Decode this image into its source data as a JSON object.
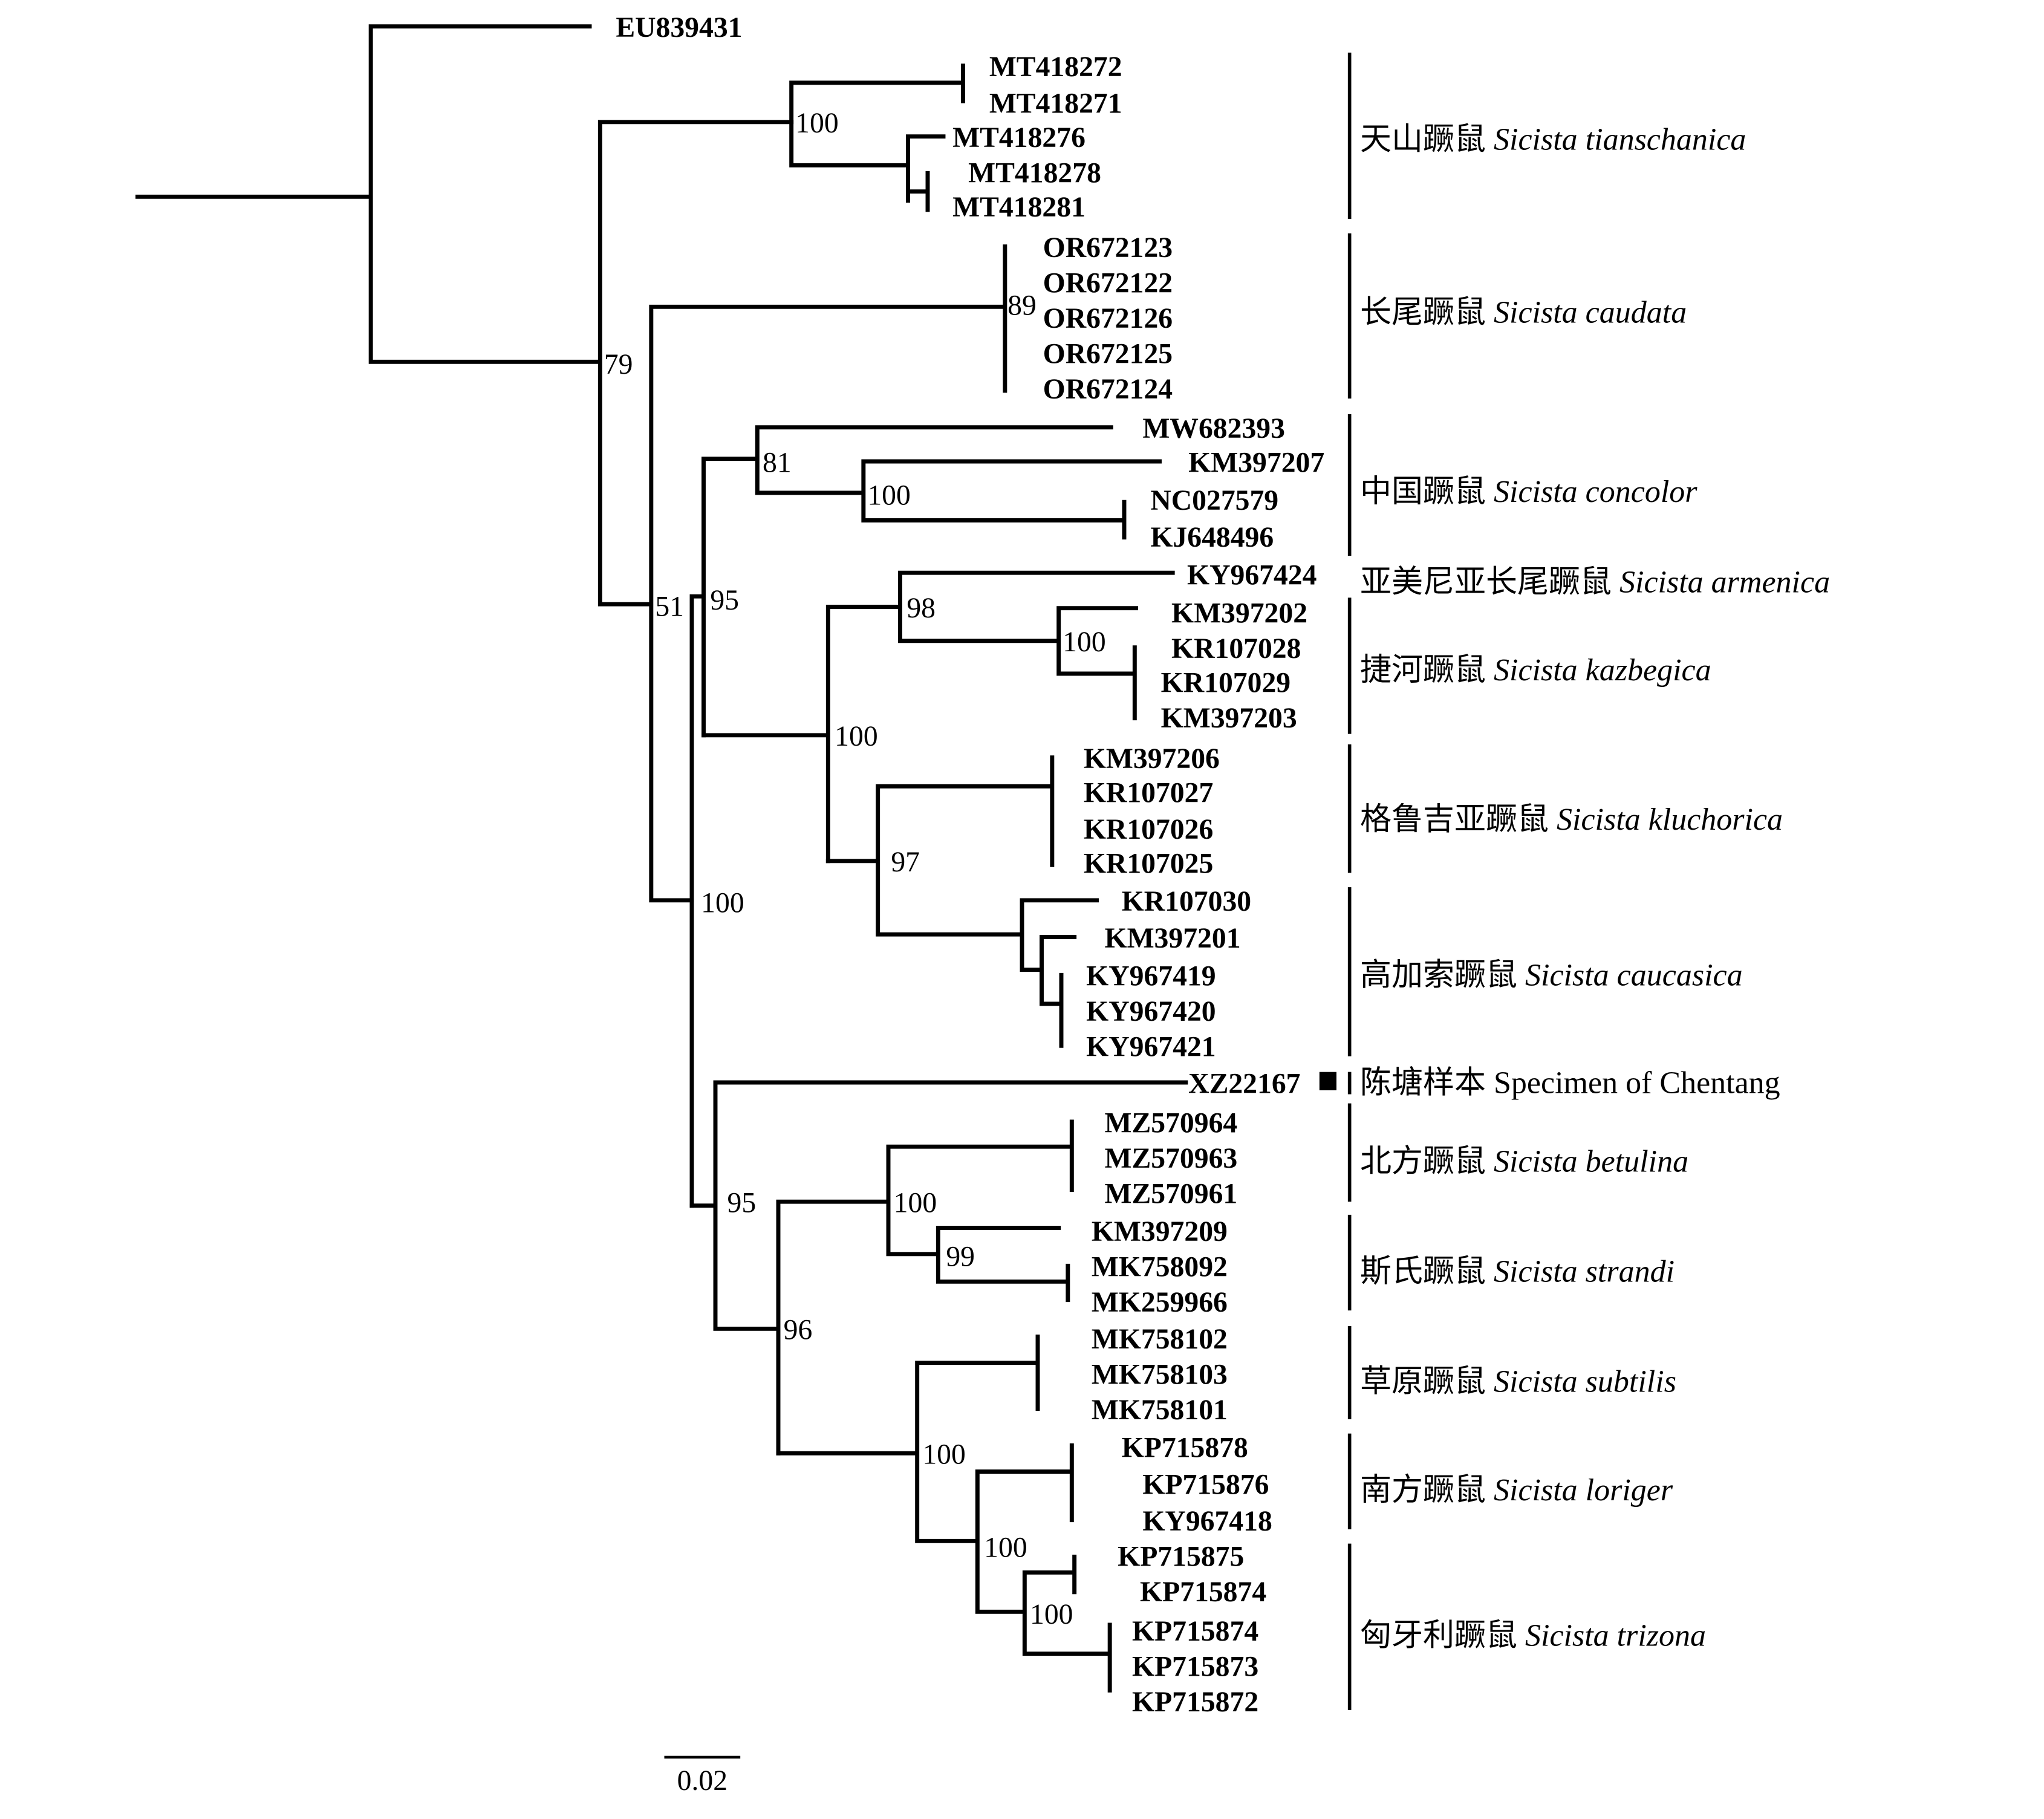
{
  "tips": [
    "EU839431",
    "MT418272",
    "MT418271",
    "MT418276",
    "MT418278",
    "MT418281",
    "OR672123",
    "OR672122",
    "OR672126",
    "OR672125",
    "OR672124",
    "MW682393",
    "KM397207",
    "NC027579",
    "KJ648496",
    "KY967424",
    "KM397202",
    "KR107028",
    "KR107029",
    "KM397203",
    "KM397206",
    "KR107027",
    "KR107026",
    "KR107025",
    "KR107030",
    "KM397201",
    "KY967419",
    "KY967420",
    "KY967421",
    "XZ22167",
    "MZ570964",
    "MZ570963",
    "MZ570961",
    "KM397209",
    "MK758092",
    "MK259966",
    "MK758102",
    "MK758103",
    "MK758101",
    "KP715878",
    "KP715876",
    "KY967418",
    "KP715875",
    "KP715874",
    "KP715874",
    "KP715873",
    "KP715872"
  ],
  "supports": [
    "100",
    "89",
    "79",
    "81",
    "100",
    "51",
    "95",
    "98",
    "100",
    "100",
    "97",
    "100",
    "95",
    "100",
    "99",
    "96",
    "100",
    "100",
    "100"
  ],
  "clades": [
    {
      "cn": "天山蹶鼠",
      "latin": "Sicista tianschanica"
    },
    {
      "cn": "长尾蹶鼠",
      "latin": "Sicista caudata"
    },
    {
      "cn": "中国蹶鼠",
      "latin": "Sicista concolor"
    },
    {
      "cn": "亚美尼亚长尾蹶鼠",
      "latin": "Sicista armenica"
    },
    {
      "cn": "捷河蹶鼠",
      "latin": "Sicista kazbegica"
    },
    {
      "cn": "格鲁吉亚蹶鼠",
      "latin": "Sicista kluchorica"
    },
    {
      "cn": "高加索蹶鼠",
      "latin": "Sicista caucasica"
    },
    {
      "cn": "陈塘样本",
      "latin": "Specimen of Chentang"
    },
    {
      "cn": "北方蹶鼠",
      "latin": "Sicista betulina"
    },
    {
      "cn": "斯氏蹶鼠",
      "latin": "Sicista strandi"
    },
    {
      "cn": "草原蹶鼠",
      "latin": "Sicista subtilis"
    },
    {
      "cn": "南方蹶鼠",
      "latin": "Sicista loriger"
    },
    {
      "cn": "匈牙利蹶鼠",
      "latin": "Sicista trizona"
    }
  ],
  "scale_bar": "0.02"
}
